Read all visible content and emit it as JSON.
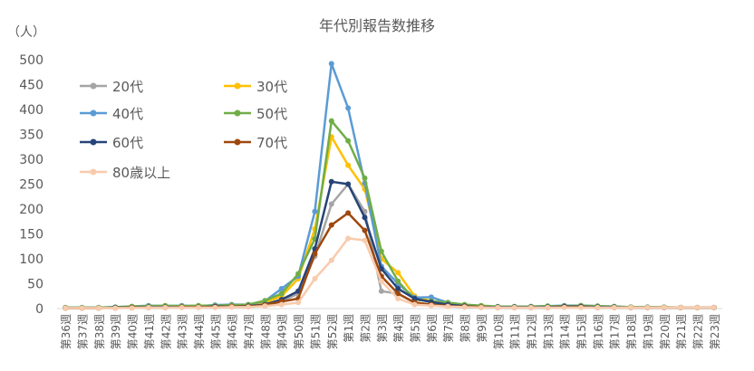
{
  "chart_data": {
    "type": "line",
    "title": "年代別報告数推移",
    "ylabel": "（人）",
    "xlabel": "",
    "ylim": [
      0,
      500
    ],
    "yticks": [
      0,
      50,
      100,
      150,
      200,
      250,
      300,
      350,
      400,
      450,
      500
    ],
    "grid": false,
    "legend_position": "top-left",
    "categories": [
      "第36週",
      "第37週",
      "第38週",
      "第39週",
      "第40週",
      "第41週",
      "第42週",
      "第43週",
      "第44週",
      "第45週",
      "第46週",
      "第47週",
      "第48週",
      "第49週",
      "第50週",
      "第51週",
      "第52週",
      "第1週",
      "第2週",
      "第3週",
      "第4週",
      "第5週",
      "第6週",
      "第7週",
      "第8週",
      "第9週",
      "第10週",
      "第11週",
      "第12週",
      "第13週",
      "第14週",
      "第15週",
      "第16週",
      "第17週",
      "第18週",
      "第19週",
      "第20週",
      "第21週",
      "第22週",
      "第23週"
    ],
    "series": [
      {
        "name": "20代",
        "color": "#a5a5a5",
        "values": [
          1,
          1,
          2,
          2,
          3,
          4,
          4,
          4,
          4,
          5,
          5,
          6,
          9,
          15,
          30,
          105,
          210,
          250,
          195,
          35,
          30,
          12,
          8,
          5,
          3,
          2,
          2,
          2,
          2,
          2,
          3,
          3,
          3,
          2,
          2,
          2,
          2,
          2,
          2,
          2
        ]
      },
      {
        "name": "30代",
        "color": "#ffc000",
        "values": [
          1,
          1,
          1,
          2,
          4,
          4,
          4,
          5,
          4,
          5,
          6,
          7,
          12,
          25,
          60,
          160,
          345,
          288,
          240,
          100,
          72,
          25,
          15,
          10,
          5,
          4,
          3,
          3,
          3,
          4,
          5,
          5,
          4,
          3,
          3,
          2,
          2,
          2,
          2,
          2
        ]
      },
      {
        "name": "40代",
        "color": "#5b9bd5",
        "values": [
          2,
          2,
          2,
          3,
          4,
          6,
          5,
          6,
          5,
          7,
          8,
          8,
          15,
          40,
          65,
          195,
          492,
          403,
          252,
          85,
          50,
          22,
          23,
          12,
          6,
          5,
          3,
          3,
          4,
          5,
          6,
          6,
          5,
          4,
          3,
          3,
          2,
          2,
          2,
          2
        ]
      },
      {
        "name": "50代",
        "color": "#70ad47",
        "values": [
          2,
          2,
          2,
          3,
          4,
          5,
          6,
          5,
          6,
          6,
          7,
          8,
          16,
          30,
          70,
          140,
          377,
          337,
          262,
          115,
          55,
          18,
          15,
          12,
          8,
          6,
          4,
          4,
          4,
          5,
          5,
          6,
          5,
          4,
          3,
          3,
          3,
          2,
          2,
          2
        ]
      },
      {
        "name": "60代",
        "color": "#264478",
        "values": [
          1,
          1,
          1,
          2,
          2,
          3,
          3,
          3,
          3,
          4,
          4,
          5,
          8,
          18,
          35,
          120,
          255,
          250,
          183,
          80,
          40,
          20,
          13,
          8,
          5,
          3,
          3,
          3,
          3,
          3,
          4,
          4,
          3,
          3,
          2,
          2,
          2,
          2,
          2,
          2
        ]
      },
      {
        "name": "70代",
        "color": "#9e480e",
        "values": [
          1,
          1,
          1,
          1,
          2,
          2,
          2,
          3,
          3,
          3,
          4,
          4,
          7,
          14,
          20,
          110,
          168,
          192,
          157,
          65,
          30,
          12,
          8,
          5,
          4,
          3,
          2,
          2,
          2,
          2,
          3,
          3,
          2,
          2,
          2,
          2,
          2,
          2,
          2,
          2
        ]
      },
      {
        "name": "80歳以上",
        "color": "#f8cbad",
        "values": [
          1,
          1,
          1,
          1,
          1,
          2,
          2,
          2,
          2,
          2,
          3,
          3,
          5,
          8,
          12,
          60,
          97,
          141,
          137,
          55,
          20,
          8,
          6,
          4,
          3,
          2,
          2,
          2,
          2,
          2,
          2,
          2,
          2,
          2,
          2,
          2,
          2,
          2,
          2,
          2
        ]
      }
    ]
  }
}
